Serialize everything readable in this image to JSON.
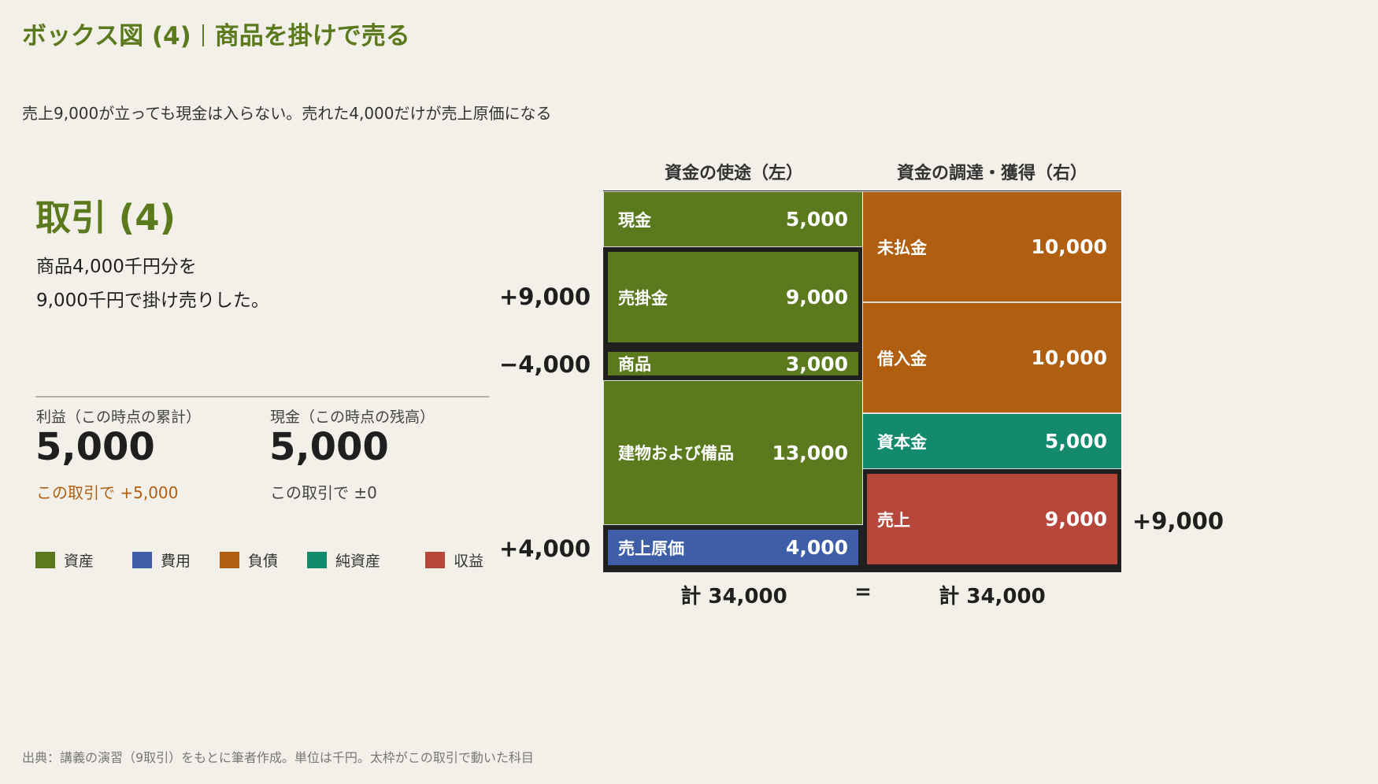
{
  "header": {
    "title_main": "ボックス図 (4)",
    "title_sub": "商品を掛けで売る",
    "subtitle": "売上9,000が立っても現金は入らない。売れた4,000だけが売上原価になる"
  },
  "transaction": {
    "title": "取引 (4)",
    "desc_line1": "商品4,000千円分を",
    "desc_line2": "9,000千円で掛け売りした。"
  },
  "metrics": {
    "profit": {
      "label": "利益（この時点の累計）",
      "value": "5,000",
      "change": "この取引で +5,000",
      "change_color": "#b05e10"
    },
    "cash": {
      "label": "現金（この時点の残高）",
      "value": "5,000",
      "change": "この取引で ±0",
      "change_color": "#444444"
    }
  },
  "legend": [
    {
      "label": "資産",
      "color": "#5b7a1e"
    },
    {
      "label": "費用",
      "color": "#3f5ea8"
    },
    {
      "label": "負債",
      "color": "#b05e10"
    },
    {
      "label": "純資産",
      "color": "#138a6e"
    },
    {
      "label": "収益",
      "color": "#b7473b"
    }
  ],
  "columns": {
    "left_header": "資金の使途（左）",
    "right_header": "資金の調達・獲得（右）"
  },
  "left_boxes": [
    {
      "label": "現金",
      "value": "5,000",
      "amount": 5000,
      "color": "#5b7a1e",
      "highlight": false
    },
    {
      "label": "売掛金",
      "value": "9,000",
      "amount": 9000,
      "color": "#5b7a1e",
      "highlight": true
    },
    {
      "label": "商品",
      "value": "3,000",
      "amount": 3000,
      "color": "#5b7a1e",
      "highlight": true
    },
    {
      "label": "建物および備品",
      "value": "13,000",
      "amount": 13000,
      "color": "#5b7a1e",
      "highlight": false
    },
    {
      "label": "売上原価",
      "value": "4,000",
      "amount": 4000,
      "color": "#3f5ea8",
      "highlight": true
    }
  ],
  "right_boxes": [
    {
      "label": "未払金",
      "value": "10,000",
      "amount": 10000,
      "color": "#b05e10",
      "highlight": false
    },
    {
      "label": "借入金",
      "value": "10,000",
      "amount": 10000,
      "color": "#b05e10",
      "highlight": false
    },
    {
      "label": "資本金",
      "value": "5,000",
      "amount": 5000,
      "color": "#138a6e",
      "highlight": false
    },
    {
      "label": "売上",
      "value": "9,000",
      "amount": 9000,
      "color": "#b7473b",
      "highlight": true
    }
  ],
  "deltas": {
    "receivable": "+9,000",
    "inventory": "−4,000",
    "cogs": "+4,000",
    "sales": "+9,000"
  },
  "totals": {
    "left": "計 34,000",
    "equals": "=",
    "right": "計 34,000"
  },
  "footnote": "出典：講義の演習（9取引）をもとに筆者作成。単位は千円。太枠がこの取引で動いた科目"
}
